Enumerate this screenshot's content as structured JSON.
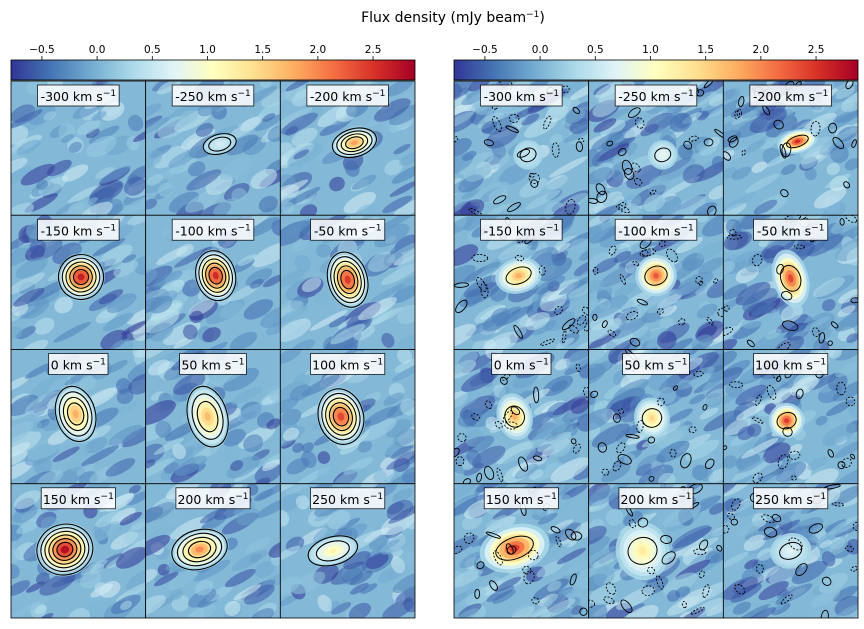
{
  "chart_data": {
    "type": "heatmap",
    "title": "Flux density (mJy beam",
    "title_sup": "−1",
    "title_end": ")",
    "colorbar": {
      "ticks": [
        -0.5,
        0.0,
        0.5,
        1.0,
        1.5,
        2.0,
        2.5
      ],
      "tick_labels": [
        "−0.5",
        "0.0",
        "0.5",
        "1.0",
        "1.5",
        "2.0",
        "2.5"
      ],
      "range": [
        -0.78,
        2.88
      ],
      "colormap": [
        "#313695",
        "#4575b4",
        "#74add1",
        "#abd9e9",
        "#e0f3f8",
        "#ffffbf",
        "#fee090",
        "#fdae61",
        "#f46d43",
        "#d73027",
        "#a50026"
      ]
    },
    "grid": {
      "rows": 4,
      "cols": 3
    },
    "unit_label": " km s",
    "unit_sup": "−1",
    "velocities": [
      "-300",
      "-250",
      "-200",
      "-150",
      "-100",
      "-50",
      "0",
      "50",
      "100",
      "150",
      "200",
      "250"
    ],
    "contours": {
      "left_panels": "model (smooth, nested)",
      "right_panels": "observed (noisy)"
    },
    "panels": [
      {
        "name": "left",
        "emission": [
          null,
          {
            "x": 0.55,
            "y": 0.47,
            "peak": 0.6,
            "sx": 0.06,
            "sy": 0.035
          },
          {
            "x": 0.55,
            "y": 0.46,
            "peak": 1.9,
            "sx": 0.08,
            "sy": 0.05
          },
          {
            "x": 0.52,
            "y": 0.46,
            "peak": 2.7,
            "sx": 0.08,
            "sy": 0.08
          },
          {
            "x": 0.52,
            "y": 0.45,
            "peak": 2.6,
            "sx": 0.07,
            "sy": 0.09
          },
          {
            "x": 0.5,
            "y": 0.48,
            "peak": 2.5,
            "sx": 0.07,
            "sy": 0.1
          },
          {
            "x": 0.48,
            "y": 0.48,
            "peak": 1.8,
            "sx": 0.07,
            "sy": 0.1
          },
          {
            "x": 0.46,
            "y": 0.5,
            "peak": 1.7,
            "sx": 0.07,
            "sy": 0.11
          },
          {
            "x": 0.45,
            "y": 0.5,
            "peak": 2.4,
            "sx": 0.08,
            "sy": 0.1
          },
          {
            "x": 0.4,
            "y": 0.49,
            "peak": 2.8,
            "sx": 0.1,
            "sy": 0.09
          },
          {
            "x": 0.4,
            "y": 0.49,
            "peak": 2.0,
            "sx": 0.1,
            "sy": 0.07
          },
          {
            "x": 0.39,
            "y": 0.5,
            "peak": 1.2,
            "sx": 0.09,
            "sy": 0.05
          }
        ]
      },
      {
        "name": "right",
        "emission": [
          {
            "x": 0.55,
            "y": 0.55,
            "peak": 0.5,
            "sx": 0.05,
            "sy": 0.05
          },
          {
            "x": 0.55,
            "y": 0.55,
            "peak": 0.8,
            "sx": 0.05,
            "sy": 0.05
          },
          {
            "x": 0.55,
            "y": 0.45,
            "peak": 2.6,
            "sx": 0.07,
            "sy": 0.04
          },
          {
            "x": 0.48,
            "y": 0.45,
            "peak": 1.8,
            "sx": 0.08,
            "sy": 0.06
          },
          {
            "x": 0.5,
            "y": 0.45,
            "peak": 2.3,
            "sx": 0.07,
            "sy": 0.07
          },
          {
            "x": 0.5,
            "y": 0.47,
            "peak": 2.4,
            "sx": 0.06,
            "sy": 0.1
          },
          {
            "x": 0.45,
            "y": 0.5,
            "peak": 1.8,
            "sx": 0.06,
            "sy": 0.08
          },
          {
            "x": 0.47,
            "y": 0.51,
            "peak": 1.5,
            "sx": 0.06,
            "sy": 0.07
          },
          {
            "x": 0.47,
            "y": 0.53,
            "peak": 2.5,
            "sx": 0.06,
            "sy": 0.06
          },
          {
            "x": 0.45,
            "y": 0.48,
            "peak": 2.5,
            "sx": 0.12,
            "sy": 0.08
          },
          {
            "x": 0.4,
            "y": 0.5,
            "peak": 1.3,
            "sx": 0.09,
            "sy": 0.1
          },
          {
            "x": 0.5,
            "y": 0.5,
            "peak": 0.7,
            "sx": 0.07,
            "sy": 0.06
          }
        ]
      }
    ]
  }
}
